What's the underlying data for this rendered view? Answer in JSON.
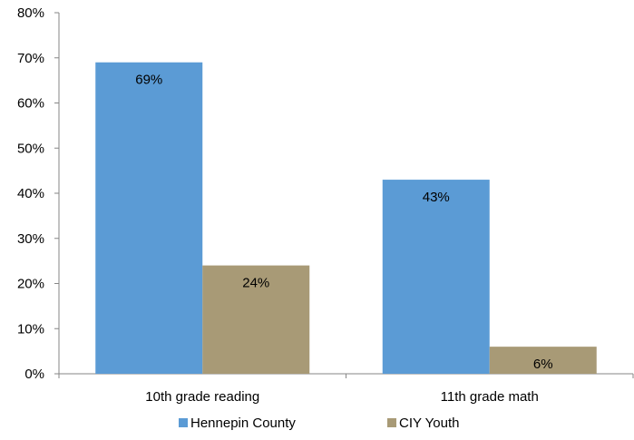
{
  "chart_data": {
    "type": "bar",
    "categories": [
      "10th grade reading",
      "11th grade math"
    ],
    "series": [
      {
        "name": "Hennepin County",
        "values": [
          69,
          43
        ],
        "labels": [
          "69%",
          "43%"
        ],
        "color": "#5b9bd5"
      },
      {
        "name": "CIY Youth",
        "values": [
          24,
          6
        ],
        "labels": [
          "24%",
          "6%"
        ],
        "color": "#a89a76"
      }
    ],
    "ylim": [
      0,
      80
    ],
    "yticks": [
      0,
      10,
      20,
      30,
      40,
      50,
      60,
      70,
      80
    ],
    "ytick_labels": [
      "0%",
      "10%",
      "20%",
      "30%",
      "40%",
      "50%",
      "60%",
      "70%",
      "80%"
    ],
    "grid": false,
    "legend_position": "bottom"
  }
}
